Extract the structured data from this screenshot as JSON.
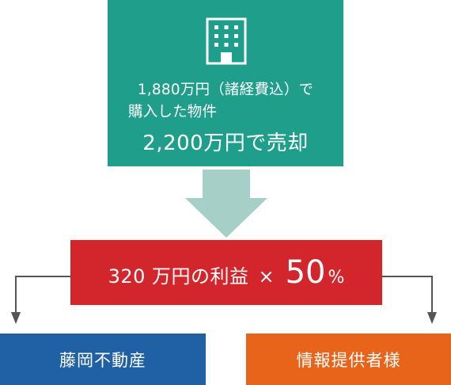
{
  "property": {
    "icon": "building-icon",
    "purchase_line1": "1,880万円（諸経費込）で",
    "purchase_line2": "購入した物件",
    "sale_line": "2,200万円で売却"
  },
  "profit": {
    "text": "320 万円の利益",
    "multiply": "×",
    "rate_number": "50",
    "rate_unit": "%"
  },
  "parties": {
    "left": "藤岡不動産",
    "right": "情報提供者様"
  },
  "colors": {
    "property_box": "#1f9e8c",
    "arrow": "#a6cfc7",
    "profit_box": "#d3262c",
    "left_party": "#2060a4",
    "right_party": "#e8641b",
    "connector": "#555555"
  }
}
